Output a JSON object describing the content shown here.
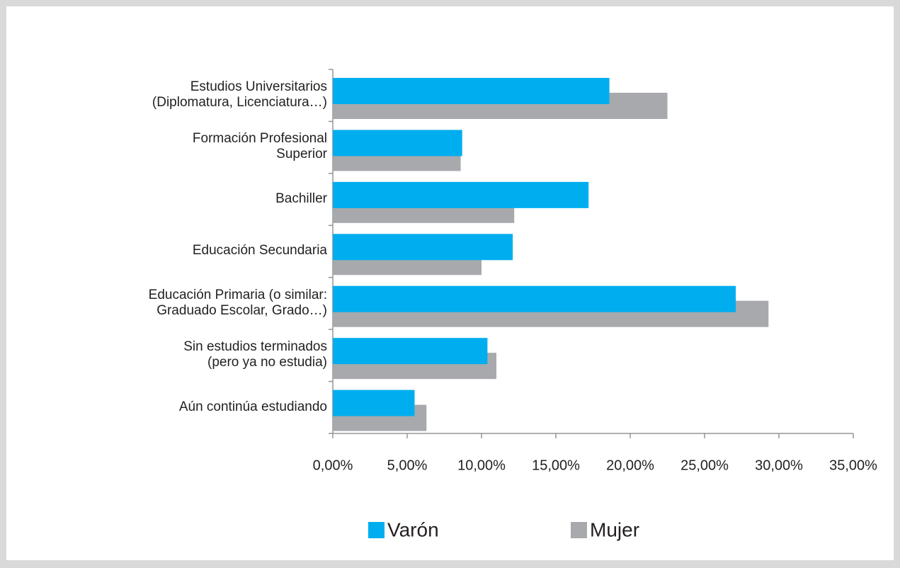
{
  "chart_data": {
    "type": "bar",
    "orientation": "horizontal",
    "categories": [
      "Estudios Universitarios\n(Diplomatura, Licenciatura…)",
      "Formación Profesional\nSuperior",
      "Bachiller",
      "Educación Secundaria",
      "Educación Primaria (o similar:\nGraduado Escolar, Grado…)",
      "Sin estudios terminados\n(pero ya no estudia)",
      "Aún continúa estudiando"
    ],
    "series": [
      {
        "name": "Varón",
        "color": "#00aeef",
        "values": [
          18.6,
          8.7,
          17.2,
          12.1,
          27.1,
          10.4,
          5.5
        ]
      },
      {
        "name": "Mujer",
        "color": "#a7a9ac",
        "values": [
          22.5,
          8.6,
          12.2,
          10.0,
          29.3,
          11.0,
          6.3
        ]
      }
    ],
    "xlim": [
      0,
      35
    ],
    "xticks": [
      {
        "value": 0,
        "label": "0,00%"
      },
      {
        "value": 5,
        "label": "5,00%"
      },
      {
        "value": 10,
        "label": "10,00%"
      },
      {
        "value": 15,
        "label": "15,00%"
      },
      {
        "value": 20,
        "label": "20,00%"
      },
      {
        "value": 25,
        "label": "25,00%"
      },
      {
        "value": 30,
        "label": "30,00%"
      },
      {
        "value": 35,
        "label": "35,00%"
      }
    ],
    "grid": false,
    "legend": "bottom"
  }
}
